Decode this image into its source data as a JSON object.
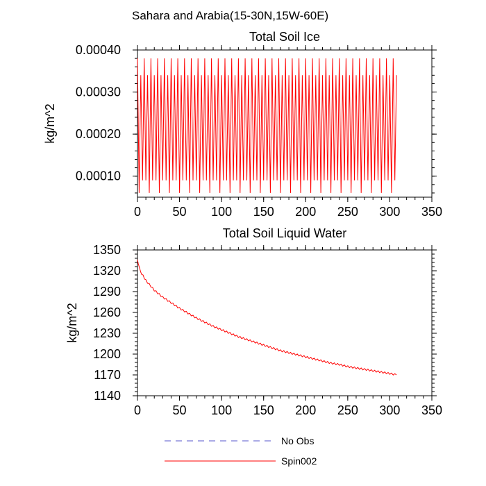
{
  "figure": {
    "title": "Sahara and Arabia(15-30N,15W-60E)"
  },
  "legend": {
    "placement": "bottom",
    "items": [
      {
        "label": "No Obs",
        "color": "#5555cc",
        "dash": true
      },
      {
        "label": "Spin002",
        "color": "#ff0000",
        "dash": false
      }
    ]
  },
  "chart_data": [
    {
      "type": "line",
      "title": "Total Soil Ice",
      "ylabel": "kg/m^2",
      "xlabel": "",
      "xlim": [
        0,
        350
      ],
      "ylim": [
        5e-05,
        0.0004
      ],
      "xticks": [
        0,
        50,
        100,
        150,
        200,
        250,
        300,
        350
      ],
      "xtick_labels": [
        "0",
        "50",
        "100",
        "150",
        "200",
        "250",
        "300",
        "350"
      ],
      "yticks": [
        0.0001,
        0.0002,
        0.0003,
        0.0004
      ],
      "ytick_labels": [
        "0.00010",
        "0.00020",
        "0.00030",
        "0.00040"
      ],
      "grid": false,
      "series": [
        {
          "name": "Spin002",
          "color": "#ff0000",
          "pattern": "seasonal-oscillation",
          "x_start": 0,
          "x_end": 308,
          "period": 4,
          "min_values": [
            6e-05,
            9e-05
          ],
          "max_values": [
            0.00038,
            0.00034
          ]
        }
      ]
    },
    {
      "type": "line",
      "title": "Total Soil Liquid Water",
      "ylabel": "kg/m^2",
      "xlabel": "",
      "xlim": [
        0,
        350
      ],
      "ylim": [
        1140,
        1350
      ],
      "xticks": [
        0,
        50,
        100,
        150,
        200,
        250,
        300,
        350
      ],
      "xtick_labels": [
        "0",
        "50",
        "100",
        "150",
        "200",
        "250",
        "300",
        "350"
      ],
      "yticks": [
        1140,
        1170,
        1200,
        1230,
        1260,
        1290,
        1320,
        1350
      ],
      "ytick_labels": [
        "1140",
        "1170",
        "1200",
        "1230",
        "1260",
        "1290",
        "1320",
        "1350"
      ],
      "grid": false,
      "series": [
        {
          "name": "Spin002",
          "color": "#ff0000",
          "x": [
            0,
            1,
            3,
            5,
            10,
            20,
            30,
            40,
            50,
            60,
            70,
            80,
            90,
            100,
            110,
            120,
            130,
            140,
            150,
            160,
            170,
            180,
            190,
            200,
            210,
            220,
            230,
            240,
            250,
            260,
            270,
            280,
            290,
            300,
            308
          ],
          "y": [
            1336,
            1330,
            1322,
            1316,
            1306,
            1292,
            1282,
            1274,
            1266,
            1259,
            1252,
            1246,
            1240,
            1235,
            1230,
            1225,
            1221,
            1217,
            1213,
            1209,
            1205,
            1202,
            1199,
            1196,
            1193,
            1190,
            1187,
            1185,
            1182,
            1180,
            1178,
            1176,
            1174,
            1172,
            1170
          ]
        }
      ]
    }
  ]
}
